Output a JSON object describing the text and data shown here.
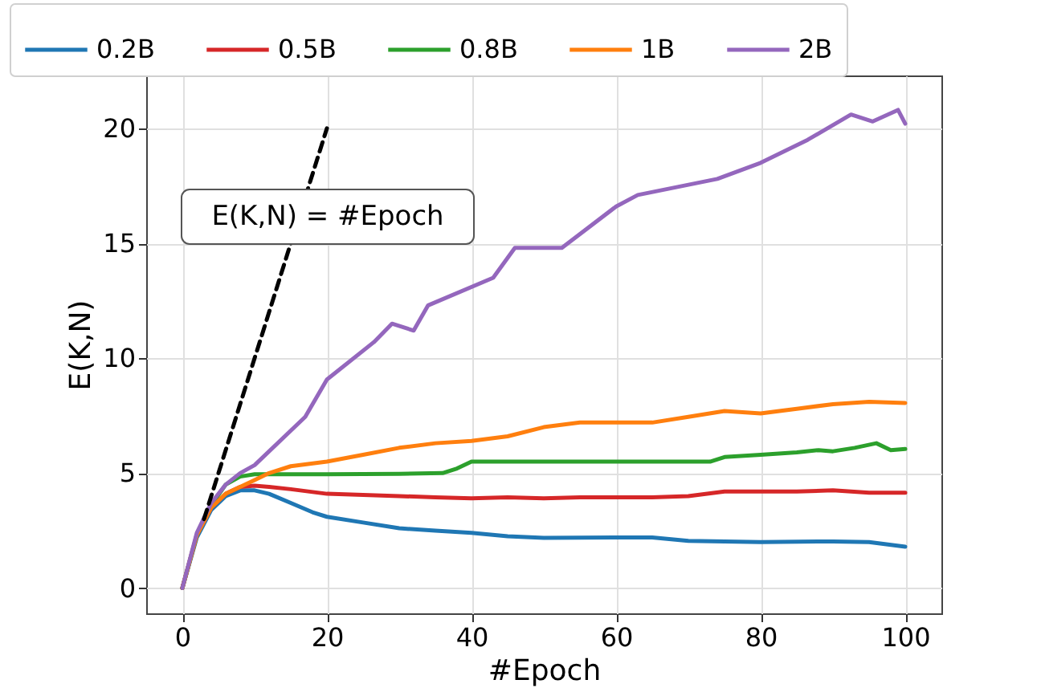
{
  "chart_data": {
    "type": "line",
    "xlabel": "#Epoch",
    "ylabel": "E(K,N)",
    "xlim": [
      -5,
      105
    ],
    "ylim": [
      -1.1,
      22.3
    ],
    "xticks": [
      0,
      20,
      40,
      60,
      80,
      100
    ],
    "yticks": [
      0,
      5,
      10,
      15,
      20
    ],
    "grid": true,
    "legend": "top",
    "marker": "none",
    "line_style": "solid",
    "annotations": [
      "E(K,N) = #Epoch"
    ],
    "series": [
      {
        "name": "0.2B",
        "color": "#1f77b4",
        "x": [
          0,
          2,
          4,
          6,
          8,
          10,
          12,
          15,
          18,
          20,
          25,
          30,
          35,
          40,
          45,
          50,
          60,
          65,
          70,
          80,
          90,
          95,
          100
        ],
        "values": [
          0,
          2.2,
          3.4,
          4.0,
          4.25,
          4.25,
          4.1,
          3.7,
          3.3,
          3.1,
          2.85,
          2.6,
          2.5,
          2.4,
          2.25,
          2.18,
          2.2,
          2.2,
          2.05,
          2.0,
          2.03,
          2.0,
          1.8
        ]
      },
      {
        "name": "0.5B",
        "color": "#d62728",
        "x": [
          0,
          2,
          4,
          6,
          8,
          10,
          12,
          15,
          20,
          25,
          30,
          35,
          40,
          45,
          50,
          55,
          60,
          65,
          70,
          75,
          80,
          85,
          90,
          95,
          100
        ],
        "values": [
          0,
          2.3,
          3.5,
          4.1,
          4.4,
          4.45,
          4.4,
          4.3,
          4.1,
          4.05,
          4.0,
          3.95,
          3.9,
          3.95,
          3.9,
          3.95,
          3.95,
          3.95,
          4.0,
          4.2,
          4.2,
          4.2,
          4.25,
          4.15,
          4.15
        ]
      },
      {
        "name": "0.8B",
        "color": "#2ca02c",
        "x": [
          0,
          2,
          4,
          6,
          8,
          10,
          15,
          20,
          30,
          36,
          38,
          40,
          50,
          60,
          70,
          73,
          75,
          80,
          85,
          88,
          90,
          93,
          96,
          98,
          100
        ],
        "values": [
          0,
          2.3,
          3.6,
          4.5,
          4.85,
          4.95,
          4.95,
          4.95,
          4.97,
          5.0,
          5.2,
          5.5,
          5.5,
          5.5,
          5.5,
          5.5,
          5.7,
          5.8,
          5.9,
          6.0,
          5.95,
          6.1,
          6.3,
          6.0,
          6.05
        ]
      },
      {
        "name": "1B",
        "color": "#ff7f0e",
        "x": [
          0,
          2,
          4,
          6,
          8,
          10,
          12,
          15,
          20,
          25,
          30,
          35,
          40,
          45,
          50,
          55,
          60,
          65,
          70,
          75,
          80,
          85,
          90,
          95,
          100
        ],
        "values": [
          0,
          2.3,
          3.5,
          4.1,
          4.4,
          4.7,
          5.0,
          5.3,
          5.5,
          5.8,
          6.1,
          6.3,
          6.4,
          6.6,
          7.0,
          7.2,
          7.2,
          7.2,
          7.45,
          7.7,
          7.6,
          7.8,
          8.0,
          8.1,
          8.05
        ]
      },
      {
        "name": "2B",
        "color": "#9467bd",
        "x": [
          0,
          2,
          4,
          6,
          8,
          10,
          17,
          20,
          26.5,
          29,
          32,
          34,
          43,
          46,
          48,
          52.5,
          60,
          63,
          68.5,
          74,
          80,
          86.5,
          92.5,
          95.5,
          99,
          100
        ],
        "values": [
          0,
          2.4,
          3.7,
          4.5,
          5.0,
          5.35,
          7.45,
          9.07,
          10.7,
          11.5,
          11.2,
          12.3,
          13.5,
          14.8,
          14.8,
          14.8,
          16.6,
          17.1,
          17.45,
          17.8,
          18.5,
          19.5,
          20.6,
          20.3,
          20.8,
          20.2
        ]
      },
      {
        "color": "#000000",
        "line_style": "dashed",
        "x": [
          3,
          20
        ],
        "values": [
          3,
          20
        ]
      }
    ]
  }
}
